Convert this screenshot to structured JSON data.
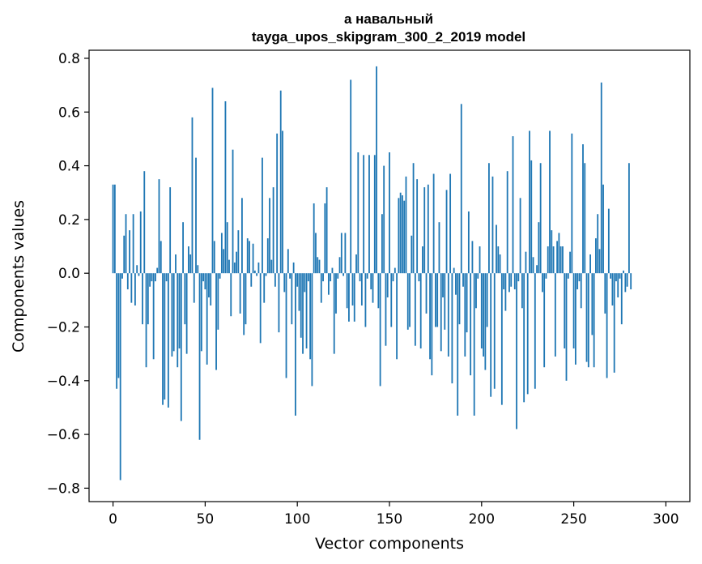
{
  "chart_data": {
    "type": "bar",
    "title": "а навальный",
    "subtitle": "tayga_upos_skipgram_300_2_2019 model",
    "xlabel": "Vector components",
    "ylabel": "Components values",
    "xlim": [
      -13,
      313
    ],
    "ylim": [
      -0.85,
      0.83
    ],
    "xticks": [
      0,
      50,
      100,
      150,
      200,
      250,
      300
    ],
    "xtick_labels": [
      "0",
      "50",
      "100",
      "150",
      "200",
      "250",
      "300"
    ],
    "yticks": [
      -0.8,
      -0.6,
      -0.4,
      -0.2,
      0.0,
      0.2,
      0.4,
      0.6,
      0.8
    ],
    "ytick_labels": [
      "−0.8",
      "−0.6",
      "−0.4",
      "−0.2",
      "0.0",
      "0.2",
      "0.4",
      "0.6",
      "0.8"
    ],
    "grid": false,
    "bar_color": "#1f77b4",
    "x": "0..299",
    "values": [
      0.33,
      0.33,
      -0.43,
      -0.39,
      -0.77,
      -0.02,
      0.14,
      0.22,
      -0.06,
      0.16,
      -0.11,
      0.22,
      -0.12,
      0.03,
      -0.01,
      0.23,
      -0.19,
      0.38,
      -0.35,
      -0.19,
      -0.05,
      -0.03,
      -0.32,
      -0.03,
      0.02,
      0.35,
      0.12,
      -0.49,
      -0.47,
      -0.03,
      -0.5,
      0.32,
      -0.31,
      -0.29,
      0.07,
      -0.35,
      -0.28,
      -0.55,
      0.19,
      -0.19,
      -0.3,
      0.1,
      0.07,
      0.58,
      -0.11,
      0.43,
      0.03,
      -0.62,
      -0.29,
      -0.03,
      -0.06,
      -0.34,
      -0.09,
      -0.12,
      0.69,
      0.12,
      -0.36,
      -0.21,
      -0.02,
      0.15,
      0.09,
      0.64,
      0.19,
      0.05,
      -0.16,
      0.46,
      0.04,
      0.08,
      0.16,
      -0.15,
      0.28,
      -0.23,
      -0.19,
      0.13,
      0.12,
      -0.05,
      0.11,
      0.01,
      -0.01,
      0.04,
      -0.26,
      0.43,
      -0.11,
      -0.01,
      0.13,
      0.28,
      0.05,
      0.32,
      -0.05,
      0.52,
      -0.22,
      0.68,
      0.53,
      -0.07,
      -0.39,
      0.09,
      -0.02,
      -0.19,
      0.04,
      -0.53,
      -0.05,
      -0.14,
      -0.24,
      -0.3,
      -0.07,
      -0.28,
      -0.03,
      -0.32,
      -0.42,
      0.26,
      0.15,
      0.06,
      0.05,
      -0.11,
      -0.03,
      0.26,
      0.32,
      -0.08,
      -0.03,
      0.02,
      -0.3,
      -0.15,
      -0.02,
      0.06,
      0.15,
      -0.01,
      0.15,
      -0.13,
      -0.18,
      0.72,
      -0.12,
      -0.18,
      0.07,
      0.45,
      -0.03,
      -0.12,
      0.44,
      -0.2,
      -0.02,
      0.44,
      -0.06,
      -0.11,
      0.44,
      0.77,
      -0.13,
      -0.42,
      0.22,
      0.4,
      -0.27,
      -0.09,
      0.45,
      -0.2,
      -0.03,
      0.02,
      -0.32,
      0.28,
      0.3,
      0.29,
      0.27,
      0.36,
      -0.21,
      -0.2,
      0.14,
      0.41,
      -0.27,
      0.35,
      -0.03,
      -0.28,
      0.1,
      0.32,
      -0.15,
      0.33,
      -0.32,
      -0.38,
      0.37,
      -0.2,
      -0.2,
      0.19,
      -0.29,
      -0.09,
      -0.21,
      0.31,
      -0.31,
      0.37,
      -0.41,
      0.02,
      -0.08,
      -0.53,
      -0.19,
      0.63,
      -0.05,
      -0.31,
      -0.22,
      0.23,
      -0.38,
      0.12,
      -0.53,
      -0.13,
      -0.02,
      0.1,
      -0.28,
      -0.31,
      -0.36,
      -0.2,
      0.41,
      -0.46,
      0.36,
      -0.43,
      0.18,
      0.1,
      0.07,
      -0.49,
      -0.06,
      -0.14,
      0.38,
      -0.07,
      -0.05,
      0.51,
      -0.06,
      -0.58,
      -0.03,
      0.28,
      -0.13,
      -0.48,
      0.08,
      -0.45,
      0.53,
      0.42,
      0.06,
      -0.43,
      0.03,
      0.19,
      0.41,
      -0.07,
      -0.35,
      -0.02,
      0.1,
      0.53,
      0.16,
      0.1,
      -0.31,
      0.12,
      0.15,
      0.1,
      0.1,
      -0.28,
      -0.4,
      -0.02,
      0.08,
      0.52,
      -0.28,
      -0.34,
      -0.06,
      -0.03,
      -0.13,
      0.48,
      0.41,
      -0.33,
      -0.35,
      0.07,
      -0.23,
      -0.35,
      0.13,
      0.22,
      0.09,
      0.71,
      0.33,
      -0.15,
      -0.39,
      0.24,
      -0.02,
      -0.12,
      -0.37,
      -0.03,
      -0.09,
      -0.02,
      -0.19,
      0.01,
      -0.07,
      -0.05,
      0.41,
      -0.06
    ]
  }
}
